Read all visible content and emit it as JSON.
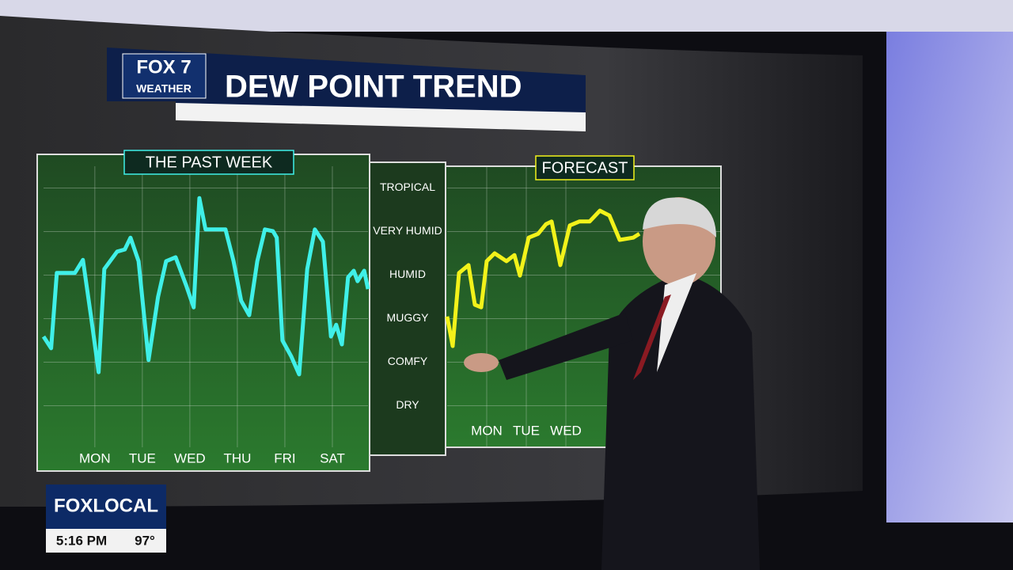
{
  "header": {
    "logo_top": "FOX 7",
    "logo_bottom": "WEATHER",
    "title": "DEW POINT TREND"
  },
  "chart_data": [
    {
      "type": "line",
      "title": "THE PAST WEEK",
      "color": "#3ff0e8",
      "x": [
        -0.08,
        0.08,
        0.2,
        0.42,
        0.58,
        0.75,
        0.92,
        1.08,
        1.2,
        1.47,
        1.63,
        1.75,
        1.92,
        2.13,
        2.33,
        2.5,
        2.7,
        2.92,
        3.08,
        3.2,
        3.33,
        3.75,
        3.92,
        4.08,
        4.25,
        4.42,
        4.58,
        4.75,
        4.83,
        4.95,
        5.13,
        5.3,
        5.47,
        5.63,
        5.8,
        5.97,
        6.08,
        6.2,
        6.33,
        6.45,
        6.53,
        6.67,
        6.75
      ],
      "values": [
        2.09,
        1.82,
        3.55,
        3.55,
        3.55,
        3.85,
        2.55,
        1.27,
        3.64,
        4.04,
        4.09,
        4.36,
        3.82,
        1.55,
        3.0,
        3.82,
        3.91,
        3.27,
        2.76,
        5.27,
        4.55,
        4.55,
        3.82,
        2.91,
        2.58,
        3.82,
        4.55,
        4.51,
        4.36,
        2.0,
        1.64,
        1.22,
        3.64,
        4.55,
        4.27,
        2.09,
        2.36,
        1.91,
        3.45,
        3.6,
        3.36,
        3.6,
        3.18
      ],
      "xlim": [
        -0.08,
        6.75
      ],
      "xticks": [
        {
          "value": 1,
          "label": "MON"
        },
        {
          "value": 2,
          "label": "TUE"
        },
        {
          "value": 3,
          "label": "WED"
        },
        {
          "value": 4,
          "label": "THU"
        },
        {
          "value": 5,
          "label": "FRI"
        },
        {
          "value": 6,
          "label": "SAT"
        }
      ],
      "ylim": [
        0,
        6
      ],
      "yticks": [
        {
          "value": 0.5,
          "label": "DRY"
        },
        {
          "value": 1.5,
          "label": "COMFY"
        },
        {
          "value": 2.5,
          "label": "MUGGY"
        },
        {
          "value": 3.5,
          "label": "HUMID"
        },
        {
          "value": 4.5,
          "label": "VERY HUMID"
        },
        {
          "value": 5.5,
          "label": "TROPICAL"
        }
      ],
      "grid": true
    },
    {
      "type": "line",
      "title": "FORECAST",
      "color": "#f2f21a",
      "x": [
        0.0,
        0.14,
        0.3,
        0.54,
        0.7,
        0.86,
        1.0,
        1.2,
        1.5,
        1.7,
        1.84,
        2.06,
        2.3,
        2.5,
        2.64,
        2.86,
        3.1,
        3.34,
        3.6,
        3.86,
        4.1,
        4.36,
        4.7,
        4.86
      ],
      "values": [
        2.55,
        1.87,
        3.55,
        3.73,
        2.82,
        2.76,
        3.82,
        4.0,
        3.82,
        3.96,
        3.49,
        4.36,
        4.45,
        4.67,
        4.73,
        3.73,
        4.64,
        4.73,
        4.73,
        4.98,
        4.87,
        4.31,
        4.36,
        4.45
      ],
      "xlim": [
        0,
        6.9
      ],
      "xticks": [
        {
          "value": 1,
          "label": "MON"
        },
        {
          "value": 2,
          "label": "TUE"
        },
        {
          "value": 3,
          "label": "WED"
        }
      ],
      "ylim": [
        0,
        6
      ],
      "grid": true
    }
  ],
  "ticker": {
    "brand": "FOXLOCAL",
    "time": "5:16 PM",
    "temperature": "97°"
  }
}
